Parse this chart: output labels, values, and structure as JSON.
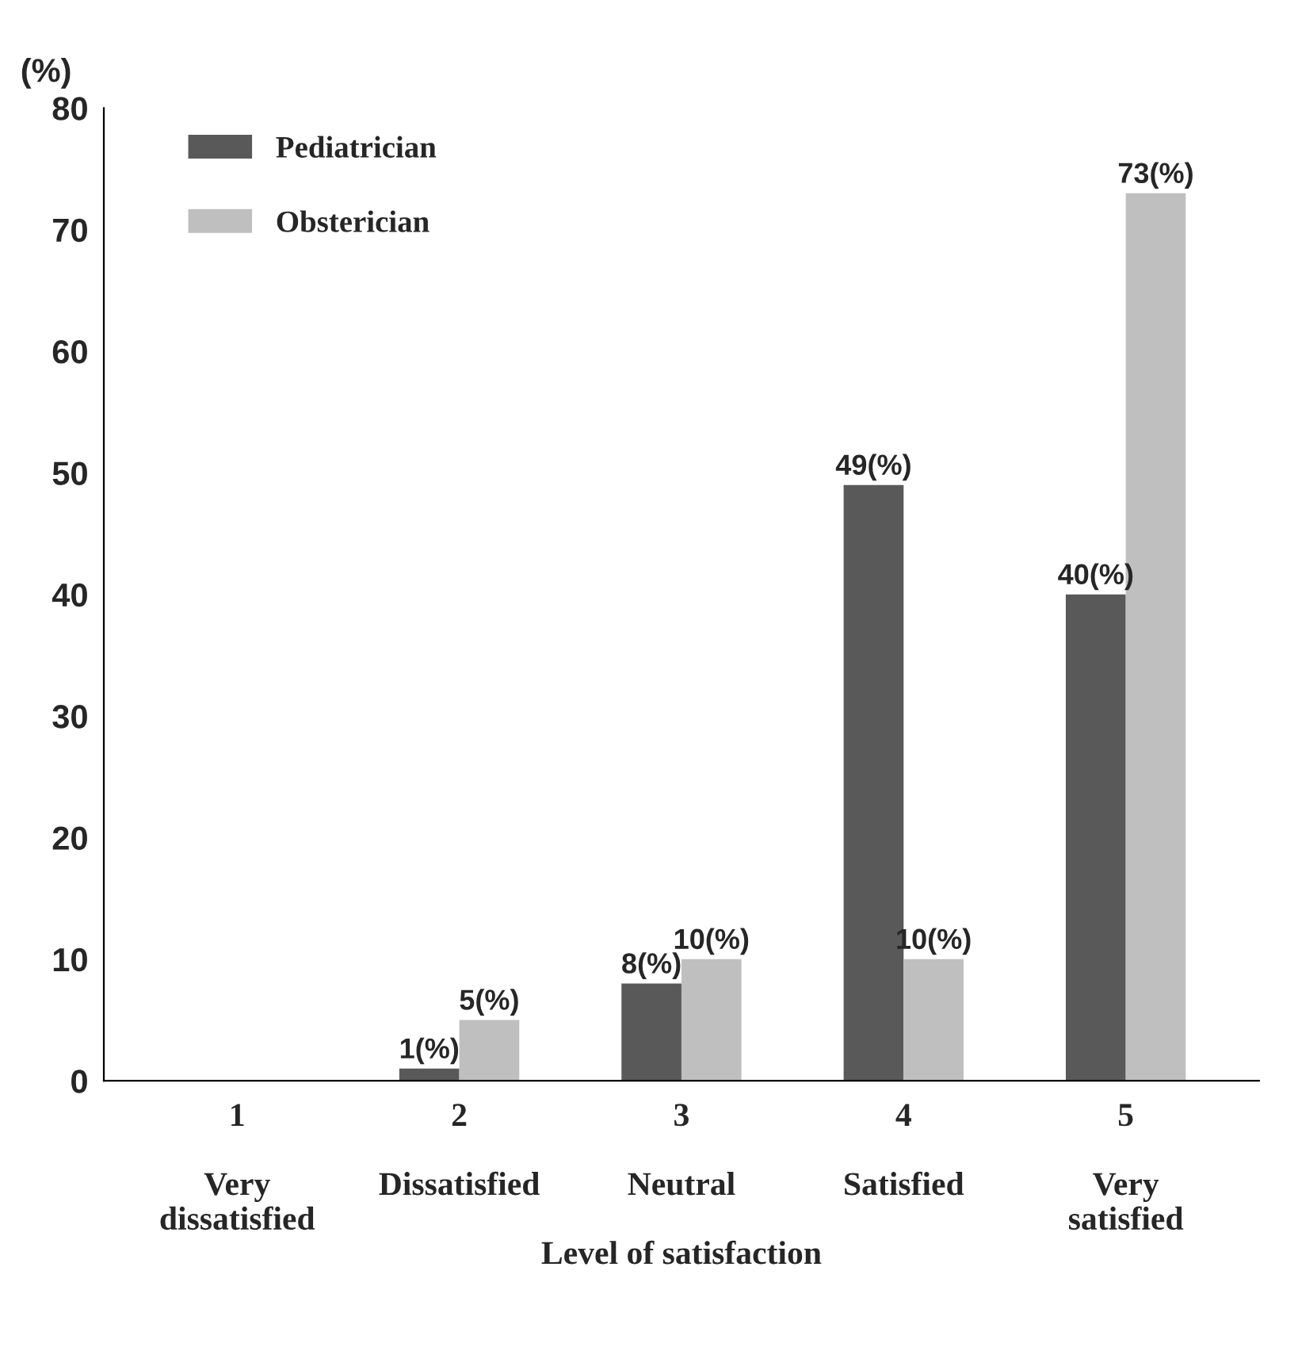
{
  "chart_data": {
    "type": "bar",
    "ylabel": "(%)",
    "xlabel": "Level of satisfaction",
    "categories": [
      "1\n\nVery\ndissatisfied",
      "2\n\nDissatisfied",
      "3\n\nNeutral",
      "4\n\nSatisfied",
      "5\n\nVery\nsatisfied"
    ],
    "series": [
      {
        "name": "Pediatrician",
        "color": "#595959",
        "values": [
          null,
          1,
          8,
          49,
          40
        ],
        "value_labels": [
          null,
          "1(%)",
          "8(%)",
          "49(%)",
          "40(%)"
        ]
      },
      {
        "name": "Obsterician",
        "color": "#bfbfbf",
        "values": [
          null,
          5,
          10,
          10,
          73
        ],
        "value_labels": [
          null,
          "5(%)",
          "10(%)",
          "10(%)",
          "73(%)"
        ]
      }
    ],
    "ylim": [
      0,
      80
    ],
    "yticks": [
      0,
      10,
      20,
      30,
      40,
      50,
      60,
      70,
      80
    ],
    "grid": false,
    "legend": "top left"
  }
}
